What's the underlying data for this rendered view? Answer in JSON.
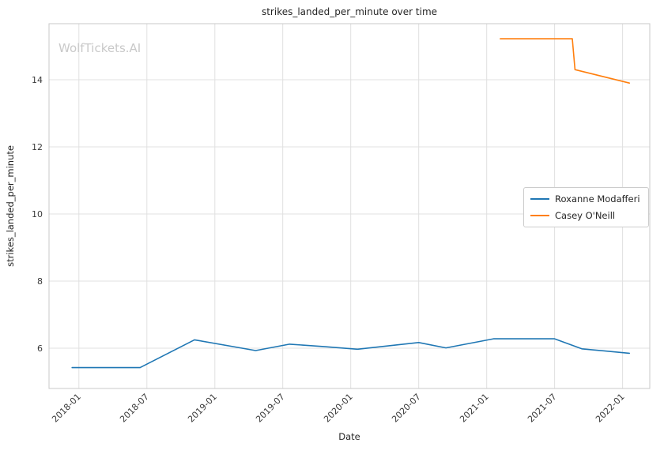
{
  "watermark": "WolfTickets.AI",
  "chart_data": {
    "type": "line",
    "title": "strikes_landed_per_minute over time",
    "xlabel": "Date",
    "ylabel": "strikes_landed_per_minute",
    "grid": true,
    "legend_position": "center right",
    "xlim": [
      2017.78,
      2022.2
    ],
    "ylim": [
      4.8,
      15.67
    ],
    "x_ticks": [
      2018.0,
      2018.5,
      2019.0,
      2019.5,
      2020.0,
      2020.5,
      2021.0,
      2021.5,
      2022.0
    ],
    "x_tick_labels": [
      "2018-01",
      "2018-07",
      "2019-01",
      "2019-07",
      "2020-01",
      "2020-07",
      "2021-01",
      "2021-07",
      "2022-01"
    ],
    "y_ticks": [
      6,
      8,
      10,
      12,
      14
    ],
    "series": [
      {
        "name": "Roxanne Modafferi",
        "color": "#1f77b4",
        "points": [
          [
            2017.95,
            5.42
          ],
          [
            2018.45,
            5.42
          ],
          [
            2018.85,
            6.25
          ],
          [
            2019.3,
            5.93
          ],
          [
            2019.55,
            6.12
          ],
          [
            2019.8,
            6.05
          ],
          [
            2020.05,
            5.97
          ],
          [
            2020.5,
            6.17
          ],
          [
            2020.7,
            6.01
          ],
          [
            2021.05,
            6.28
          ],
          [
            2021.5,
            6.28
          ],
          [
            2021.7,
            5.98
          ],
          [
            2022.05,
            5.85
          ]
        ]
      },
      {
        "name": "Casey O'Neill",
        "color": "#ff7f0e",
        "points": [
          [
            2021.1,
            15.22
          ],
          [
            2021.63,
            15.22
          ],
          [
            2021.65,
            14.3
          ],
          [
            2022.05,
            13.9
          ]
        ]
      }
    ]
  }
}
